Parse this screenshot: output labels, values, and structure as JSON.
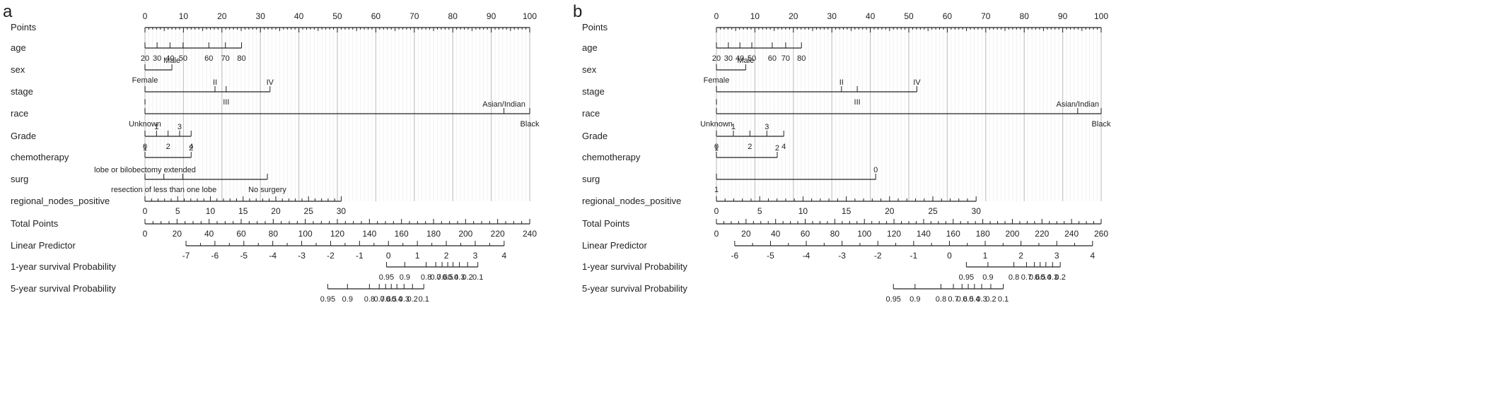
{
  "chart_data": [
    {
      "type": "nomogram",
      "panel_label": "a",
      "rows": [
        {
          "label": "Points",
          "axis": {
            "min": 0,
            "max": 100,
            "major": [
              0,
              10,
              20,
              30,
              40,
              50,
              60,
              70,
              80,
              90,
              100
            ],
            "minor_step": 1
          }
        },
        {
          "label": "age",
          "ticks": [
            {
              "t": "20",
              "p": 0,
              "side": "below"
            },
            {
              "t": "30",
              "p": 3.15,
              "side": "below"
            },
            {
              "t": "40",
              "p": 6.5,
              "side": "below"
            },
            {
              "t": "50",
              "p": 9.9,
              "side": "below"
            },
            {
              "t": "60",
              "p": 16.6,
              "side": "below"
            },
            {
              "t": "70",
              "p": 20.9,
              "side": "below"
            },
            {
              "t": "80",
              "p": 25.1,
              "side": "below"
            }
          ]
        },
        {
          "label": "sex",
          "ticks": [
            {
              "t": "Female",
              "p": 0,
              "side": "below"
            },
            {
              "t": "Male",
              "p": 7.0,
              "side": "above"
            }
          ]
        },
        {
          "label": "stage",
          "ticks": [
            {
              "t": "I",
              "p": 0,
              "side": "below"
            },
            {
              "t": "II",
              "p": 18.2,
              "side": "above"
            },
            {
              "t": "III",
              "p": 21.1,
              "side": "below"
            },
            {
              "t": "IV",
              "p": 32.5,
              "side": "above"
            }
          ]
        },
        {
          "label": "race",
          "ticks": [
            {
              "t": "Unknown",
              "p": 0,
              "side": "below"
            },
            {
              "t": "Asian/Indian",
              "p": 93.3,
              "side": "above"
            },
            {
              "t": "Black",
              "p": 100,
              "side": "below"
            }
          ]
        },
        {
          "label": "Grade",
          "ticks": [
            {
              "t": "0",
              "p": 0,
              "side": "below"
            },
            {
              "t": "1",
              "p": 3.0,
              "side": "above"
            },
            {
              "t": "2",
              "p": 6.0,
              "side": "below"
            },
            {
              "t": "3",
              "p": 9.0,
              "side": "above"
            },
            {
              "t": "4",
              "p": 12.0,
              "side": "below"
            }
          ]
        },
        {
          "label": "chemotherapy",
          "ticks": [
            {
              "t": "1",
              "p": 0,
              "side": "above"
            },
            {
              "t": "2",
              "p": 12.0,
              "side": "above"
            }
          ]
        },
        {
          "label": "surg",
          "ticks": [
            {
              "t": "lobe or bilobectomy extended",
              "p": 0,
              "side": "above"
            },
            {
              "t": "resection of less than one lobe",
              "p": 4.9,
              "side": "below"
            },
            {
              "t": "",
              "p": 9.8,
              "side": "below"
            },
            {
              "t": "No surgery",
              "p": 31.8,
              "side": "below"
            }
          ]
        },
        {
          "label": "regional_nodes_positive",
          "axis": {
            "min": 0,
            "max": 30,
            "major": [
              0,
              5,
              10,
              15,
              20,
              25,
              30
            ],
            "minor_step": 1,
            "points_max": 51
          }
        },
        {
          "label": "Total Points",
          "axis": {
            "min": 0,
            "max": 240,
            "major": [
              0,
              20,
              40,
              60,
              80,
              100,
              120,
              140,
              160,
              180,
              200,
              220,
              240
            ],
            "minor_step": 5
          }
        },
        {
          "label": "Linear Predictor",
          "axis": {
            "start": -7,
            "end": 4,
            "major": [
              -7,
              -6,
              -5,
              -4,
              -3,
              -2,
              -1,
              0,
              1,
              2,
              3,
              4
            ],
            "minor_step": 0.5,
            "x_start_frac": 0.1066,
            "x_end_frac": 0.9335
          }
        },
        {
          "label": "1-year survival Probability",
          "ticks_frac": [
            {
              "t": "0.95",
              "f": 0.6277
            },
            {
              "t": "0.9",
              "f": 0.6753
            },
            {
              "t": "0.8",
              "f": 0.7308
            },
            {
              "t": "0.7",
              "f": 0.7557
            },
            {
              "t": "0.6",
              "f": 0.7722
            },
            {
              "t": "0.5",
              "f": 0.7869
            },
            {
              "t": "0.4",
              "f": 0.8007
            },
            {
              "t": "0.3",
              "f": 0.8173
            },
            {
              "t": "0.2",
              "f": 0.8385
            },
            {
              "t": "0.1",
              "f": 0.8652
            }
          ]
        },
        {
          "label": "5-year survival Probability",
          "ticks_frac": [
            {
              "t": "0.95",
              "f": 0.4751
            },
            {
              "t": "0.9",
              "f": 0.5263
            },
            {
              "t": "0.8",
              "f": 0.5834
            },
            {
              "t": "0.7",
              "f": 0.6089
            },
            {
              "t": "0.6",
              "f": 0.6254
            },
            {
              "t": "0.5",
              "f": 0.6401
            },
            {
              "t": "0.4",
              "f": 0.6548
            },
            {
              "t": "0.3",
              "f": 0.6733
            },
            {
              "t": "0.2",
              "f": 0.6953
            },
            {
              "t": "0.1",
              "f": 0.7247
            }
          ]
        }
      ]
    },
    {
      "type": "nomogram",
      "panel_label": "b",
      "rows": [
        {
          "label": "Points",
          "axis": {
            "min": 0,
            "max": 100,
            "major": [
              0,
              10,
              20,
              30,
              40,
              50,
              60,
              70,
              80,
              90,
              100
            ],
            "minor_step": 1
          }
        },
        {
          "label": "age",
          "ticks": [
            {
              "t": "20",
              "p": 0,
              "side": "below"
            },
            {
              "t": "30",
              "p": 3.1,
              "side": "below"
            },
            {
              "t": "40",
              "p": 6.1,
              "side": "below"
            },
            {
              "t": "50",
              "p": 9.2,
              "side": "below"
            },
            {
              "t": "60",
              "p": 14.5,
              "side": "below"
            },
            {
              "t": "70",
              "p": 18.0,
              "side": "below"
            },
            {
              "t": "80",
              "p": 22.1,
              "side": "below"
            }
          ]
        },
        {
          "label": "sex",
          "ticks": [
            {
              "t": "Female",
              "p": 0,
              "side": "below"
            },
            {
              "t": "Male",
              "p": 7.6,
              "side": "above"
            }
          ]
        },
        {
          "label": "stage",
          "ticks": [
            {
              "t": "I",
              "p": 0,
              "side": "below"
            },
            {
              "t": "II",
              "p": 32.5,
              "side": "above"
            },
            {
              "t": "III",
              "p": 36.6,
              "side": "below"
            },
            {
              "t": "IV",
              "p": 52.1,
              "side": "above"
            }
          ]
        },
        {
          "label": "race",
          "ticks": [
            {
              "t": "Unknown",
              "p": 0,
              "side": "below"
            },
            {
              "t": "Asian/Indian",
              "p": 93.9,
              "side": "above"
            },
            {
              "t": "Black",
              "p": 100,
              "side": "below"
            }
          ]
        },
        {
          "label": "Grade",
          "ticks": [
            {
              "t": "0",
              "p": 0,
              "side": "below"
            },
            {
              "t": "1",
              "p": 4.4,
              "side": "above"
            },
            {
              "t": "2",
              "p": 8.7,
              "side": "below"
            },
            {
              "t": "3",
              "p": 13.1,
              "side": "above"
            },
            {
              "t": "4",
              "p": 17.5,
              "side": "below"
            }
          ]
        },
        {
          "label": "chemotherapy",
          "ticks": [
            {
              "t": "1",
              "p": 0,
              "side": "above"
            },
            {
              "t": "2",
              "p": 15.8,
              "side": "above"
            }
          ]
        },
        {
          "label": "surg",
          "ticks": [
            {
              "t": "1",
              "p": 0,
              "side": "below"
            },
            {
              "t": "0",
              "p": 41.4,
              "side": "above"
            }
          ]
        },
        {
          "label": "regional_nodes_positive",
          "axis": {
            "min": 0,
            "max": 30,
            "major": [
              0,
              5,
              10,
              15,
              20,
              25,
              30
            ],
            "minor_step": 1,
            "points_max": 67.5
          }
        },
        {
          "label": "Total Points",
          "axis": {
            "min": 0,
            "max": 260,
            "major": [
              0,
              20,
              40,
              60,
              80,
              100,
              120,
              140,
              160,
              180,
              200,
              220,
              240,
              260
            ],
            "minor_step": 5
          }
        },
        {
          "label": "Linear Predictor",
          "axis": {
            "start": -6,
            "end": 4,
            "major": [
              -6,
              -5,
              -4,
              -3,
              -2,
              -1,
              0,
              1,
              2,
              3,
              4
            ],
            "minor_step": 0.5,
            "x_start_frac": 0.0475,
            "x_end_frac": 0.9776
          }
        },
        {
          "label": "1-year survival Probability",
          "ticks_frac": [
            {
              "t": "0.95",
              "f": 0.6496
            },
            {
              "t": "0.9",
              "f": 0.7057
            },
            {
              "t": "0.8",
              "f": 0.7731
            },
            {
              "t": "0.7",
              "f": 0.8059
            },
            {
              "t": "0.6",
              "f": 0.8265
            },
            {
              "t": "0.5",
              "f": 0.8414
            },
            {
              "t": "0.4",
              "f": 0.8563
            },
            {
              "t": "0.3",
              "f": 0.8737
            },
            {
              "t": "0.2",
              "f": 0.8937
            }
          ]
        },
        {
          "label": "5-year survival Probability",
          "ticks_frac": [
            {
              "t": "0.95",
              "f": 0.46
            },
            {
              "t": "0.9",
              "f": 0.5162
            },
            {
              "t": "0.8",
              "f": 0.5835
            },
            {
              "t": "0.7",
              "f": 0.6159
            },
            {
              "t": "0.6",
              "f": 0.6383
            },
            {
              "t": "0.5",
              "f": 0.6545
            },
            {
              "t": "0.4",
              "f": 0.6707
            },
            {
              "t": "0.3",
              "f": 0.6894
            },
            {
              "t": "0.2",
              "f": 0.7131
            },
            {
              "t": "0.1",
              "f": 0.7455
            }
          ]
        }
      ]
    }
  ]
}
